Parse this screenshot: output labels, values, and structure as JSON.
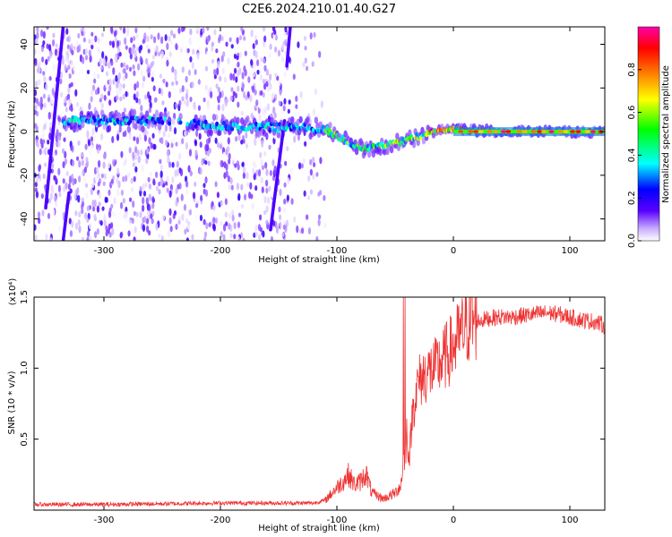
{
  "title": "C2E6.2024.210.01.40.G27",
  "chart_data": [
    {
      "type": "heatmap",
      "xlabel": "Height of straight line (km)",
      "ylabel": "Frequency (Hz)",
      "xlim": [
        -360,
        130
      ],
      "ylim": [
        -50,
        48
      ],
      "xticks": [
        -300,
        -200,
        -100,
        0,
        100
      ],
      "xtick_labels": [
        "-300",
        "-200",
        "-100",
        "0",
        "100"
      ],
      "yticks": [
        -40,
        -20,
        0,
        20,
        40
      ],
      "ytick_labels": [
        "-40",
        "-20",
        "0",
        "20",
        "40"
      ],
      "colorbar": {
        "label": "Normalized spectral amplitude",
        "range": [
          0,
          1
        ],
        "ticks": [
          0.0,
          0.2,
          0.4,
          0.6,
          0.8
        ],
        "tick_labels": [
          "0.0",
          "0.2",
          "0.4",
          "0.6",
          "0.8"
        ],
        "colors": [
          "#ffffff",
          "#c4a6ff",
          "#5a00ff",
          "#0000ff",
          "#00ffff",
          "#00ff00",
          "#ffff00",
          "#ff8000",
          "#ff0000",
          "#ff00aa"
        ]
      },
      "main_band": [
        {
          "x": -330,
          "freq": 5
        },
        {
          "x": -300,
          "freq": 5
        },
        {
          "x": -260,
          "freq": 5
        },
        {
          "x": -210,
          "freq": 3
        },
        {
          "x": -170,
          "freq": 2
        },
        {
          "x": -130,
          "freq": 2
        },
        {
          "x": -110,
          "freq": 1
        },
        {
          "x": -90,
          "freq": -5
        },
        {
          "x": -75,
          "freq": -8
        },
        {
          "x": -55,
          "freq": -6
        },
        {
          "x": -40,
          "freq": -4
        },
        {
          "x": -20,
          "freq": 0
        },
        {
          "x": 0,
          "freq": 1
        },
        {
          "x": 50,
          "freq": 0
        },
        {
          "x": 130,
          "freq": 0
        }
      ],
      "streaks": [
        {
          "x0": -335,
          "f0": 48,
          "x1": -350,
          "f1": -35
        },
        {
          "x0": -330,
          "f0": -28,
          "x1": -335,
          "f1": -50
        },
        {
          "x0": -145,
          "f0": 5,
          "x1": -157,
          "f1": -45
        },
        {
          "x0": -140,
          "f0": 48,
          "x1": -143,
          "f1": 30
        }
      ]
    },
    {
      "type": "line",
      "xlabel": "Height of straight line (km)",
      "ylabel": "SNR (10 * v/v)",
      "y_scale_note": "(x10⁴)",
      "xlim": [
        -360,
        130
      ],
      "ylim": [
        0,
        1.5
      ],
      "xticks": [
        -300,
        -200,
        -100,
        0,
        100
      ],
      "xtick_labels": [
        "-300",
        "-200",
        "-100",
        "0",
        "100"
      ],
      "yticks": [
        0.5,
        1.0,
        1.5
      ],
      "ytick_labels": [
        "0.5",
        "1.0",
        "1.5"
      ],
      "series": [
        {
          "color": "#ee3333",
          "x": [
            -360,
            -300,
            -200,
            -120,
            -110,
            -100,
            -95,
            -90,
            -85,
            -80,
            -75,
            -70,
            -65,
            -60,
            -55,
            -50,
            -45,
            -40,
            -38,
            -35,
            -30,
            -25,
            -20,
            -15,
            -10,
            -5,
            0,
            5,
            10,
            15,
            20,
            30,
            40,
            50,
            60,
            70,
            80,
            90,
            100,
            110,
            120,
            130
          ],
          "values": [
            0.04,
            0.04,
            0.05,
            0.05,
            0.07,
            0.16,
            0.2,
            0.25,
            0.18,
            0.2,
            0.26,
            0.12,
            0.1,
            0.08,
            0.1,
            0.12,
            0.18,
            0.55,
            0.35,
            0.7,
            0.9,
            0.95,
            0.98,
            1.0,
            1.05,
            1.1,
            1.15,
            1.22,
            1.28,
            1.33,
            1.33,
            1.35,
            1.36,
            1.36,
            1.37,
            1.38,
            1.39,
            1.38,
            1.36,
            1.34,
            1.33,
            1.3
          ]
        }
      ]
    }
  ]
}
